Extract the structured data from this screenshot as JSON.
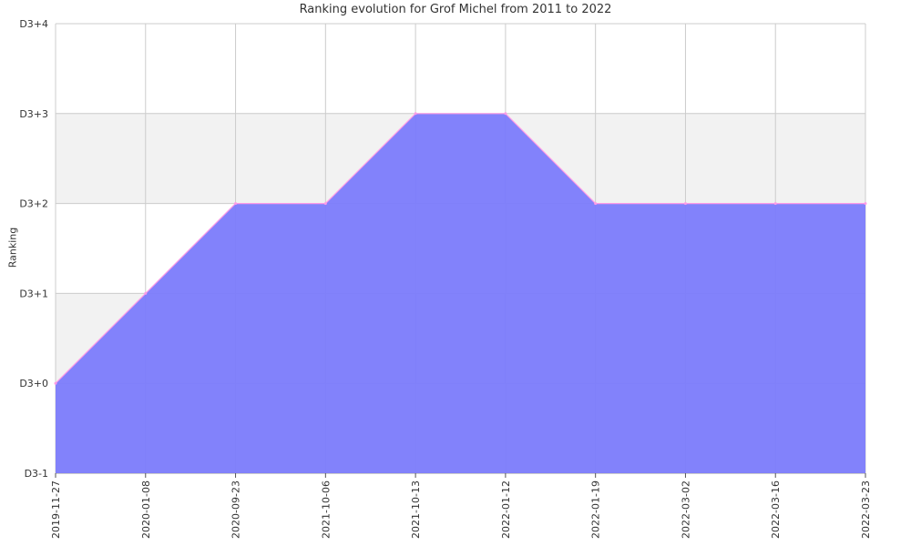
{
  "chart_data": {
    "type": "area",
    "title": "Ranking evolution for Grof Michel from 2011 to 2022",
    "xlabel": "",
    "ylabel": "Ranking",
    "categories": [
      "2019-11-27",
      "2020-01-08",
      "2020-09-23",
      "2021-10-06",
      "2021-10-13",
      "2022-01-12",
      "2022-01-19",
      "2022-03-02",
      "2022-03-16",
      "2022-03-23"
    ],
    "values": [
      0,
      1,
      2,
      2,
      3,
      3,
      2,
      2,
      2,
      2
    ],
    "y_ticks": [
      "D3-1",
      "D3+0",
      "D3+1",
      "D3+2",
      "D3+3",
      "D3+4"
    ],
    "ylim": [
      -1,
      4
    ],
    "grid": true,
    "colors": {
      "fill": "#7b7bfb",
      "line": "#ff9ce6",
      "band": "#f2f2f2",
      "grid": "#cccccc"
    }
  }
}
